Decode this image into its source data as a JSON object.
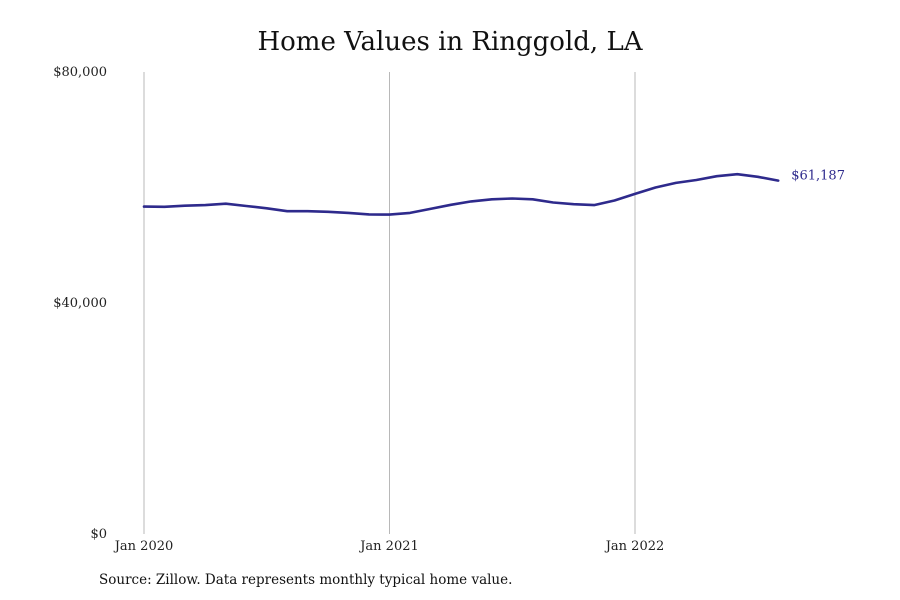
{
  "chart_data": {
    "type": "line",
    "title": "Home Values in Ringgold, LA",
    "xlabel": "",
    "ylabel": "",
    "ylim": [
      0,
      80000
    ],
    "yticks": [
      0,
      40000,
      80000
    ],
    "ytick_labels": [
      "$0",
      "$40,000",
      "$80,000"
    ],
    "xticks": [
      "2020-01",
      "2021-01",
      "2022-01"
    ],
    "xtick_labels": [
      "Jan 2020",
      "Jan 2021",
      "Jan 2022"
    ],
    "grid": "vertical lines at x ticks",
    "series": [
      {
        "color": "#2e2a8c",
        "end_label": "$61,187",
        "points": [
          {
            "x": "2020-01",
            "y": 56700
          },
          {
            "x": "2020-02",
            "y": 56650
          },
          {
            "x": "2020-03",
            "y": 56850
          },
          {
            "x": "2020-04",
            "y": 56950
          },
          {
            "x": "2020-05",
            "y": 57200
          },
          {
            "x": "2020-06",
            "y": 56800
          },
          {
            "x": "2020-07",
            "y": 56400
          },
          {
            "x": "2020-08",
            "y": 55900
          },
          {
            "x": "2020-09",
            "y": 55900
          },
          {
            "x": "2020-10",
            "y": 55800
          },
          {
            "x": "2020-11",
            "y": 55600
          },
          {
            "x": "2020-12",
            "y": 55350
          },
          {
            "x": "2021-01",
            "y": 55300
          },
          {
            "x": "2021-02",
            "y": 55600
          },
          {
            "x": "2021-03",
            "y": 56300
          },
          {
            "x": "2021-04",
            "y": 57000
          },
          {
            "x": "2021-05",
            "y": 57600
          },
          {
            "x": "2021-06",
            "y": 57950
          },
          {
            "x": "2021-07",
            "y": 58100
          },
          {
            "x": "2021-08",
            "y": 57950
          },
          {
            "x": "2021-09",
            "y": 57400
          },
          {
            "x": "2021-10",
            "y": 57100
          },
          {
            "x": "2021-11",
            "y": 56950
          },
          {
            "x": "2021-12",
            "y": 57750
          },
          {
            "x": "2022-01",
            "y": 58900
          },
          {
            "x": "2022-02",
            "y": 60000
          },
          {
            "x": "2022-03",
            "y": 60800
          },
          {
            "x": "2022-04",
            "y": 61300
          },
          {
            "x": "2022-05",
            "y": 61950
          },
          {
            "x": "2022-06",
            "y": 62300
          },
          {
            "x": "2022-07",
            "y": 61850
          },
          {
            "x": "2022-08",
            "y": 61187
          }
        ]
      }
    ]
  },
  "source_note": "Source: Zillow. Data represents monthly typical home value."
}
